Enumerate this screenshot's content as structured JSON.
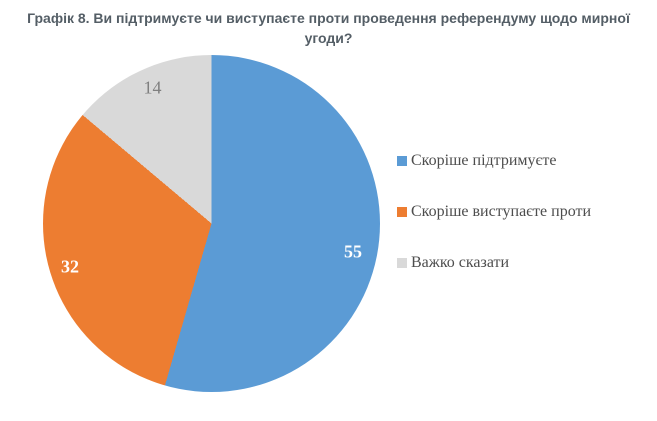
{
  "chart_data": {
    "type": "pie",
    "title": "Графік 8. Ви підтримуєте чи виступаєте проти проведення референдуму щодо мирної угоди?",
    "title_color": "#545e66",
    "categories": [
      "Скоріше підтримуєте",
      "Скоріше виступаєте проти",
      "Важко сказати"
    ],
    "values": [
      55,
      32,
      14
    ],
    "colors": [
      "#5b9bd5",
      "#ed7d31",
      "#d9d9d9"
    ],
    "start_angle_deg": 0,
    "direction": "clockwise",
    "legend_position": "right",
    "legend_text_color": "#4d4d4d",
    "data_labels": [
      {
        "text": "55",
        "color": "#ffffff",
        "bold": true,
        "x_pct": 92.0,
        "y_pct": 58.6
      },
      {
        "text": "32",
        "color": "#ffffff",
        "bold": true,
        "x_pct": 8.0,
        "y_pct": 62.9
      },
      {
        "text": "14",
        "color": "#7f7f7f",
        "bold": false,
        "x_pct": 32.5,
        "y_pct": 9.9
      }
    ]
  }
}
